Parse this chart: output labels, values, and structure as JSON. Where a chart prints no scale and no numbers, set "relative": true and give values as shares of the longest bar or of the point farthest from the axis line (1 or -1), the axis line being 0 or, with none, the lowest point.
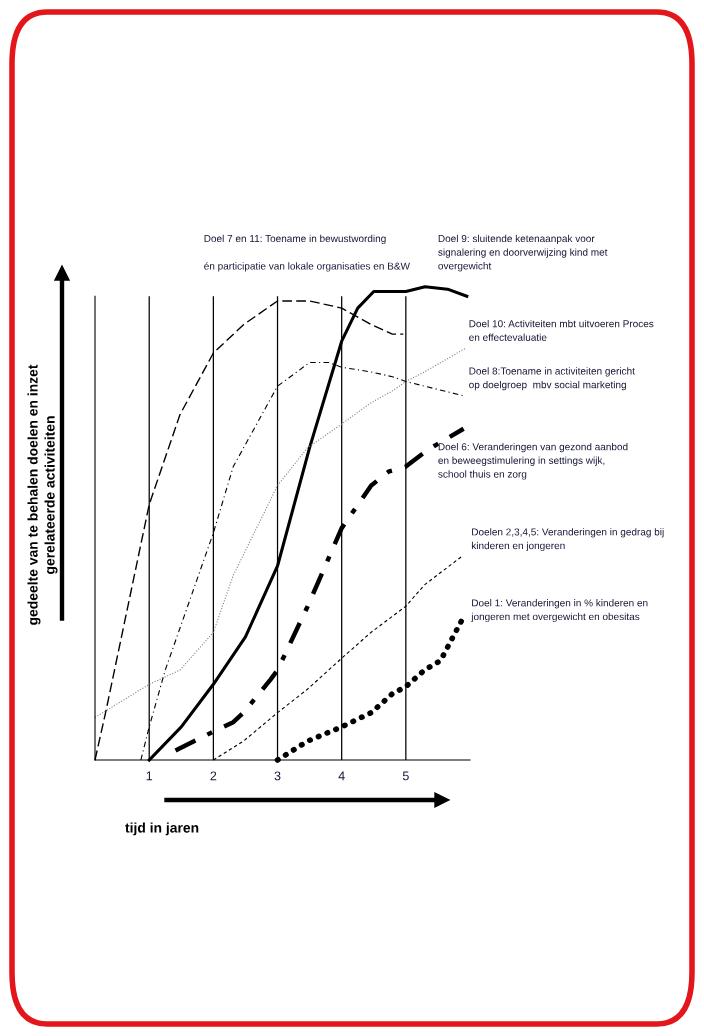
{
  "chart_data": {
    "type": "line",
    "relative": true,
    "xlabel": "tijd in jaren",
    "ylabel": "gedeelte van te behalen doelen en inzet\ngerelateerde activiteiten",
    "xlim": [
      0.155,
      6.0
    ],
    "xticks": [
      1,
      2,
      3,
      4,
      5
    ],
    "grid": "x",
    "legend": false,
    "series": [
      {
        "name": "Doel 9: sluitende ketenaanpak voor\nsignalering en doorverwijzing kind met\novergewicht",
        "color": "#000000",
        "line_style": "solid",
        "x": [
          1,
          1.5,
          2,
          2.5,
          3,
          3.5,
          4,
          4.25,
          4.5,
          5,
          5.3,
          5.65,
          5.95
        ],
        "values": [
          0,
          0.07,
          0.16,
          0.26,
          0.41,
          0.66,
          0.885,
          0.955,
          0.99,
          0.99,
          1.0,
          0.995,
          0.98
        ]
      },
      {
        "name": "Doel 10: Activiteiten mbt uitvoeren Proces\nen effectevaluatie",
        "color": "#808080",
        "line_style": "dotted",
        "x": [
          0.155,
          1,
          1.48,
          2,
          2.31,
          3,
          3.47,
          4,
          4.46,
          4.79,
          5,
          5.29,
          5.93
        ],
        "values": [
          0.09,
          0.16,
          0.19,
          0.27,
          0.39,
          0.58,
          0.66,
          0.71,
          0.755,
          0.78,
          0.8,
          0.82,
          0.87
        ]
      },
      {
        "name": "Doel 8:Toename in activiteiten gericht\nop doelgroep  mbv social marketing",
        "color": "#000000",
        "line_style": "dashdot",
        "x": [
          0.87,
          1,
          1.25,
          2,
          2.31,
          3,
          3.5,
          3.8,
          4,
          4.46,
          4.79,
          5,
          5.29,
          5.89
        ],
        "values": [
          0,
          0.07,
          0.19,
          0.48,
          0.62,
          0.79,
          0.84,
          0.84,
          0.83,
          0.82,
          0.81,
          0.8,
          0.79,
          0.77
        ]
      },
      {
        "name": "Doel 6: Veranderingen van gezond aanbod\nen beweegstimulering in settings wijk,\nschool thuis en zorg",
        "color": "#000000",
        "line_style": "dashdot",
        "x": [
          1.41,
          2,
          2.31,
          2.47,
          2.89,
          3,
          3.47,
          4,
          4.46,
          4.74,
          5,
          5.29,
          5.46,
          5.9
        ],
        "values": [
          0.02,
          0.06,
          0.08,
          0.1,
          0.17,
          0.19,
          0.325,
          0.49,
          0.58,
          0.61,
          0.62,
          0.65,
          0.665,
          0.7
        ]
      },
      {
        "name": "Doelen 2,3,4,5: Veranderingen in gedrag bij\nkinderen en jongeren",
        "color": "#000000",
        "line_style": "dashed",
        "x": [
          2,
          2.47,
          3,
          3.47,
          4,
          4.46,
          5,
          5.29,
          5.87
        ],
        "values": [
          0,
          0.04,
          0.1,
          0.15,
          0.215,
          0.27,
          0.325,
          0.37,
          0.43
        ]
      },
      {
        "name": "Doel 1: Veranderingen in % kinderen en\njongeren met overgewicht en obesitas",
        "color": "#000000",
        "line_style": "dotted",
        "x": [
          3,
          3.47,
          4,
          4.46,
          4.79,
          5,
          5.29,
          5.54,
          5.89
        ],
        "values": [
          0,
          0.04,
          0.07,
          0.1,
          0.14,
          0.155,
          0.19,
          0.21,
          0.3
        ]
      },
      {
        "name": "Doel 7 en 11: Toename in bewustwording\n\nén participatie van lokale organisaties en B&W",
        "color": "#000000",
        "line_style": "dashed",
        "x": [
          0.155,
          0.32,
          1,
          1.48,
          2,
          2.47,
          3,
          3.5,
          4,
          4.46,
          4.79,
          4.96
        ],
        "values": [
          0,
          0.1,
          0.54,
          0.73,
          0.86,
          0.92,
          0.97,
          0.97,
          0.955,
          0.92,
          0.9,
          0.9
        ]
      }
    ]
  }
}
